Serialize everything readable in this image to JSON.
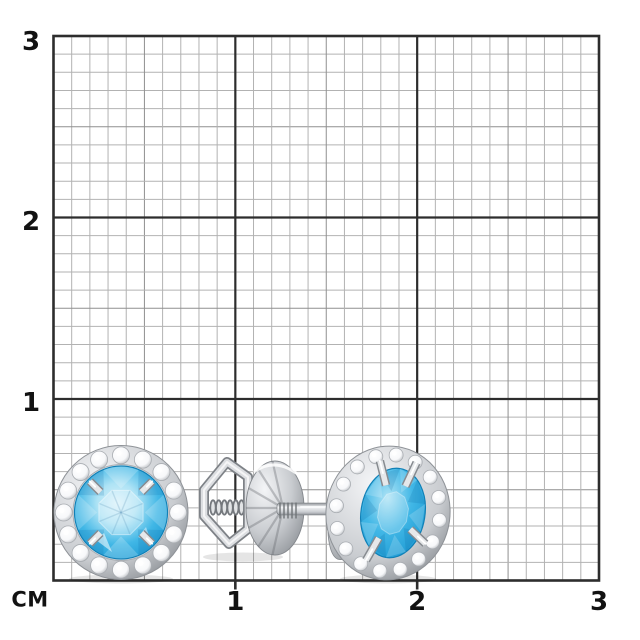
{
  "ruler": {
    "unit_label": "СМ",
    "x_tick_labels": [
      "1",
      "2",
      "3"
    ],
    "y_tick_labels": [
      "1",
      "2",
      "3"
    ],
    "cm": 3,
    "minor_per_cm": 10,
    "colors": {
      "minor": "#b2b2b2",
      "mid": "#8f8f8f",
      "major": "#2d2d2d",
      "label": "#121212"
    }
  },
  "scene": {
    "items": [
      "left-earring-front-view",
      "screw-back-clasp",
      "right-earring-side-view"
    ],
    "left_halo_stone_count": 16,
    "right_halo_stone_count": 16,
    "colors": {
      "stone_pale": "#d9f1fa",
      "stone_light": "#aee3f5",
      "stone_main": "#41b7e6",
      "stone_deep": "#1694cf",
      "stone_rim": "#1180b6",
      "metal_light": "#f4f5f7",
      "metal_mid": "#c9ccd0",
      "metal_dark": "#8e9297",
      "halo_stone": "#f7f8fa",
      "halo_line": "#a9adb2"
    }
  }
}
